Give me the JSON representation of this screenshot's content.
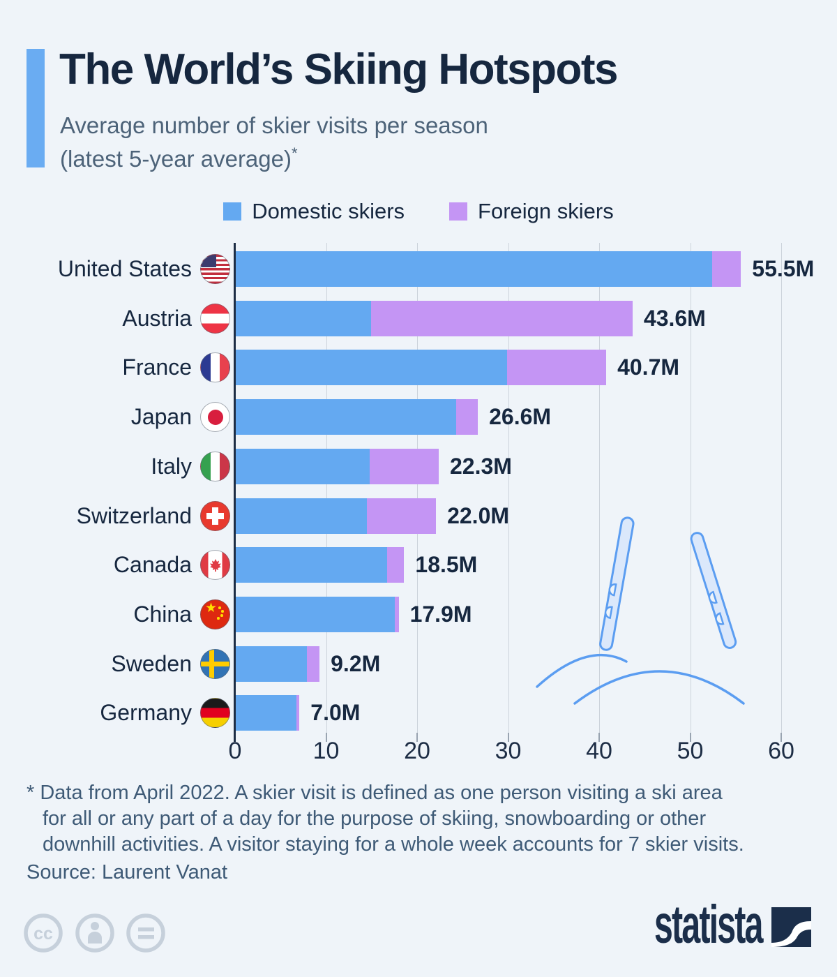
{
  "title": "The World’s Skiing Hotspots",
  "subtitle": {
    "line1": "Average number of skier visits per season",
    "line2": "(latest 5-year average)",
    "footnote_marker": "*"
  },
  "legend": [
    {
      "label": "Domestic skiers",
      "color": "#64a9f1"
    },
    {
      "label": "Foreign skiers",
      "color": "#c495f4"
    }
  ],
  "chart_data": {
    "type": "bar",
    "orientation": "horizontal",
    "stacked": true,
    "unit": "million skier visits per season",
    "categories": [
      "United States",
      "Austria",
      "France",
      "Japan",
      "Italy",
      "Switzerland",
      "Canada",
      "China",
      "Sweden",
      "Germany"
    ],
    "flags": [
      "us",
      "at",
      "fr",
      "jp",
      "it",
      "ch",
      "ca",
      "cn",
      "se",
      "de"
    ],
    "series": [
      {
        "name": "Domestic skiers",
        "color": "#64a9f1",
        "values": [
          52.3,
          14.9,
          29.8,
          24.2,
          14.7,
          14.4,
          16.6,
          17.5,
          7.8,
          6.7
        ]
      },
      {
        "name": "Foreign skiers",
        "color": "#c495f4",
        "values": [
          3.2,
          28.7,
          10.9,
          2.4,
          7.6,
          7.6,
          1.9,
          0.4,
          1.4,
          0.3
        ]
      }
    ],
    "totals": [
      55.5,
      43.6,
      40.7,
      26.6,
      22.3,
      22.0,
      18.5,
      17.9,
      9.2,
      7.0
    ],
    "total_labels": [
      "55.5M",
      "43.6M",
      "40.7M",
      "26.6M",
      "22.3M",
      "22.0M",
      "18.5M",
      "17.9M",
      "9.2M",
      "7.0M"
    ],
    "x_ticks": [
      0,
      10,
      20,
      30,
      40,
      50,
      60
    ],
    "xlim": [
      0,
      60
    ],
    "grid": true,
    "legend_position": "top"
  },
  "footnote": {
    "lines": [
      "* Data from April 2022. A skier visit is defined as one person visiting a ski area",
      "for all or any part of a day for the purpose of skiing, snowboarding or other",
      "downhill activities. A visitor staying for a whole week accounts for 7 skier visits."
    ]
  },
  "source": "Source: Laurent Vanat",
  "branding": {
    "logo_text": "statista"
  },
  "footer_icons": [
    "creative-commons",
    "attribution",
    "no-derivatives"
  ],
  "colors": {
    "background": "#eff4f9",
    "accent_bar": "#6aacf2",
    "title_text": "#16273f",
    "subtitle_text": "#4d6379",
    "axis": "#1d2d45",
    "gridline": "#ccd3db",
    "footnote_text": "#3e5a76",
    "cc_icon": "#c6d0db",
    "brand_navy": "#1b2e4a",
    "illustration_stroke": "#5b9df1",
    "illustration_fill": "#dbe8fb"
  }
}
